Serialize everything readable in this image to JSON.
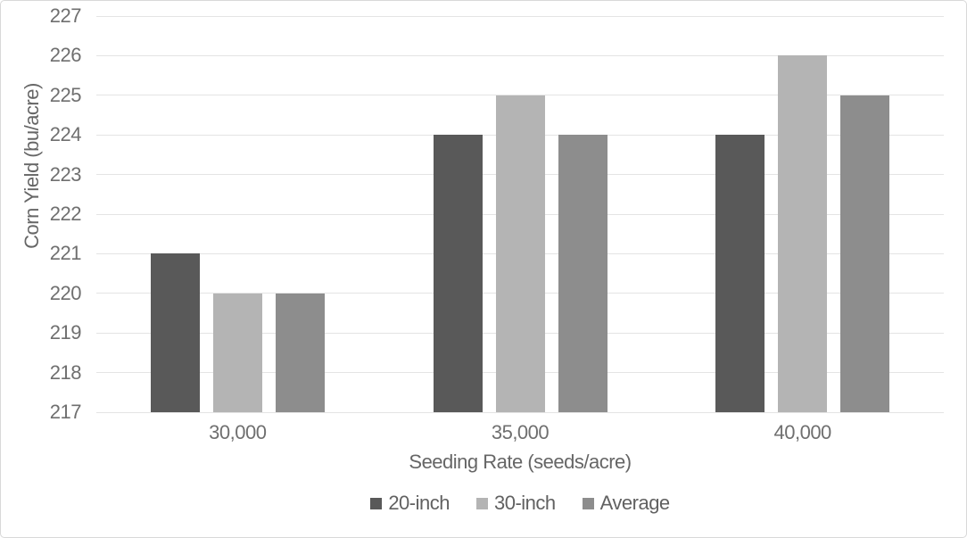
{
  "chart_data": {
    "type": "bar",
    "title": "",
    "categories": [
      "30,000",
      "35,000",
      "40,000"
    ],
    "series": [
      {
        "name": "20-inch",
        "color": "#595959",
        "values": [
          221,
          224,
          224
        ]
      },
      {
        "name": "30-inch",
        "color": "#b4b4b4",
        "values": [
          220,
          225,
          226
        ]
      },
      {
        "name": "Average",
        "color": "#8d8d8d",
        "values": [
          220,
          224,
          225
        ]
      }
    ],
    "xlabel": "Seeding Rate (seeds/acre)",
    "ylabel": "Corn Yield (bu/acre)",
    "ylim": [
      217,
      227
    ],
    "ytick_step": 1,
    "grid": "horizontal-only",
    "legend_position": "bottom",
    "colors": {
      "gridline": "#e4e4e4",
      "tick_text": "#6f6f6f",
      "axis_title_text": "#666666",
      "legend_text": "#616161",
      "border": "#d8d8d8",
      "background": "#ffffff"
    }
  }
}
